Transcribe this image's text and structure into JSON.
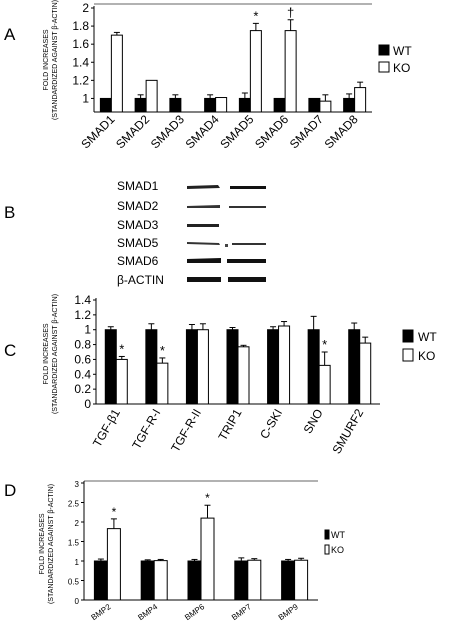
{
  "colors": {
    "wt": "#000000",
    "ko": "#ffffff",
    "axis": "#000000"
  },
  "panels": {
    "a": "A",
    "b": "B",
    "c": "C",
    "d": "D"
  },
  "legend": {
    "wt": "WT",
    "ko": "KO"
  },
  "blot": {
    "labels": [
      "SMAD1",
      "SMAD2",
      "SMAD3",
      "SMAD5",
      "SMAD6",
      "β-ACTIN"
    ]
  },
  "chart_data": [
    {
      "type": "bar",
      "panel": "A",
      "ylabel": "FOLD INCREASES (STANDARDIZED AGAINST β-ACTIN)",
      "ylabel_lines": [
        "FOLD INCREASES",
        "(STANDARDIZED AGAINST β-ACTIN)"
      ],
      "ylim": [
        0.85,
        2
      ],
      "yticks": [
        "1",
        "1.2",
        "1.4",
        "1.6",
        "1.8",
        "2"
      ],
      "ytick_values": [
        1,
        1.2,
        1.4,
        1.6,
        1.8,
        2
      ],
      "categories": [
        "SMAD1",
        "SMAD2",
        "SMAD3",
        "SMAD4",
        "SMAD5",
        "SMAD6",
        "SMAD7",
        "SMAD8"
      ],
      "series": [
        {
          "name": "WT",
          "values": [
            1,
            1,
            1,
            1,
            1,
            1,
            1,
            1
          ],
          "errors": [
            0,
            0.04,
            0.04,
            0.04,
            0.06,
            0,
            0,
            0.05
          ]
        },
        {
          "name": "KO",
          "values": [
            1.7,
            1.2,
            null,
            1.01,
            1.75,
            1.75,
            0.97,
            1.12
          ],
          "errors": [
            0.03,
            0,
            0,
            0,
            0.08,
            0.12,
            0.07,
            0.06
          ]
        }
      ],
      "significant": [
        null,
        null,
        null,
        null,
        "*",
        "†",
        null,
        null
      ]
    },
    {
      "type": "bar",
      "panel": "C",
      "ylabel": "FOLD INCREASES (STANDARDIZED AGAINST β-ACTIN)",
      "ylabel_lines": [
        "FOLD INCREASES",
        "(STANDARDIZED AGAINST β-ACTIN)"
      ],
      "ylim": [
        0,
        1.4
      ],
      "yticks": [
        "0",
        "0.2",
        "0.4",
        "0.6",
        "0.8",
        "1",
        "1.2",
        "1.4"
      ],
      "ytick_values": [
        0,
        0.2,
        0.4,
        0.6,
        0.8,
        1,
        1.2,
        1.4
      ],
      "categories": [
        "TGF-β1",
        "TGF-R-I",
        "TGF-R-II",
        "TRIP1",
        "C-SKI",
        "SNO",
        "SMURF2"
      ],
      "series": [
        {
          "name": "WT",
          "values": [
            1,
            1,
            1,
            1,
            1,
            1,
            1
          ],
          "errors": [
            0.04,
            0.08,
            0.07,
            0.03,
            0.04,
            0.18,
            0.09
          ]
        },
        {
          "name": "KO",
          "values": [
            0.6,
            0.55,
            1,
            0.77,
            1.05,
            0.52,
            0.82
          ],
          "errors": [
            0.04,
            0.07,
            0.08,
            0.02,
            0.06,
            0.18,
            0.08
          ]
        }
      ],
      "significant": [
        "*",
        "*",
        null,
        null,
        null,
        "*",
        null
      ]
    },
    {
      "type": "bar",
      "panel": "D",
      "ylabel": "FOLD INCREASES (STANDARDIZED AGAINST β-ACTIN)",
      "ylabel_lines": [
        "FOLD INCREASES",
        "(STANDARDIZED AGAINST β-ACTIN)"
      ],
      "ylim": [
        0,
        3
      ],
      "yticks": [
        "0",
        "0.5",
        "1",
        "1.5",
        "2",
        "2.5",
        "3"
      ],
      "ytick_values": [
        0,
        0.5,
        1,
        1.5,
        2,
        2.5,
        3
      ],
      "categories": [
        "BMP2",
        "BMP4",
        "BMP6",
        "BMP7",
        "BMP9"
      ],
      "series": [
        {
          "name": "WT",
          "values": [
            1,
            1,
            1,
            1,
            1
          ],
          "errors": [
            0.05,
            0.03,
            0.04,
            0.08,
            0.04
          ]
        },
        {
          "name": "KO",
          "values": [
            1.83,
            1.01,
            2.1,
            1.02,
            1.02
          ],
          "errors": [
            0.25,
            0.03,
            0.33,
            0.04,
            0.05
          ]
        }
      ],
      "significant": [
        "*",
        null,
        "*",
        null,
        null
      ]
    }
  ]
}
